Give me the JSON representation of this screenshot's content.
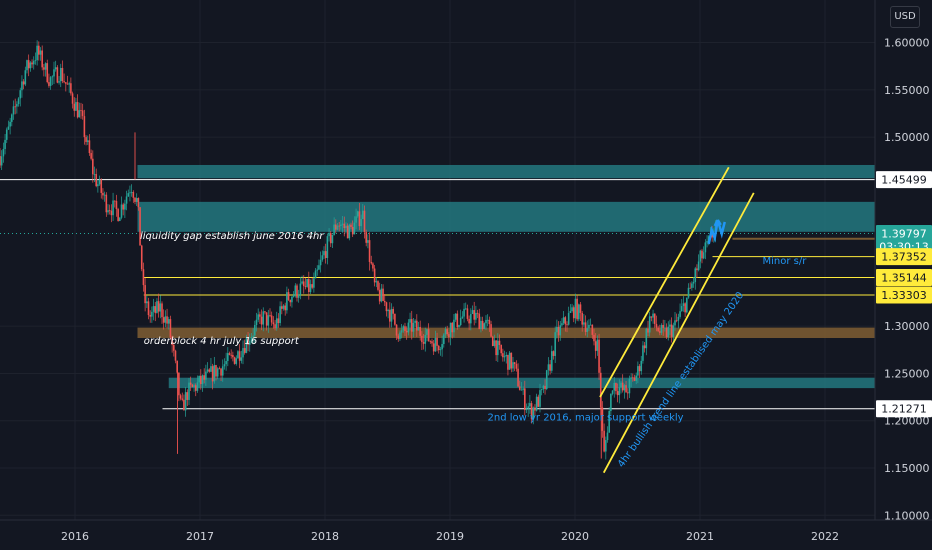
{
  "currency": "USD",
  "chart_data": {
    "type": "candlestick",
    "x_range": [
      2015.4,
      2022.4
    ],
    "y_range": [
      1.095,
      1.645
    ],
    "y_ticks": [
      {
        "value": 1.6,
        "label": "1.60000"
      },
      {
        "value": 1.55,
        "label": "1.55000"
      },
      {
        "value": 1.5,
        "label": "1.50000"
      },
      {
        "value": 1.3,
        "label": "1.30000"
      },
      {
        "value": 1.25,
        "label": "1.25000"
      },
      {
        "value": 1.2,
        "label": "1.20000"
      },
      {
        "value": 1.15,
        "label": "1.15000"
      },
      {
        "value": 1.1,
        "label": "1.10000"
      }
    ],
    "x_ticks": [
      {
        "value": 2016,
        "label": "2016"
      },
      {
        "value": 2017,
        "label": "2017"
      },
      {
        "value": 2018,
        "label": "2018"
      },
      {
        "value": 2019,
        "label": "2019"
      },
      {
        "value": 2020,
        "label": "2020"
      },
      {
        "value": 2021,
        "label": "2021"
      },
      {
        "value": 2022,
        "label": "2022"
      }
    ],
    "price_path": [
      [
        2015.4,
        1.48
      ],
      [
        2015.5,
        1.52
      ],
      [
        2015.6,
        1.57
      ],
      [
        2015.7,
        1.59
      ],
      [
        2015.8,
        1.56
      ],
      [
        2015.88,
        1.57
      ],
      [
        2015.95,
        1.55
      ],
      [
        2016.05,
        1.52
      ],
      [
        2016.15,
        1.46
      ],
      [
        2016.25,
        1.43
      ],
      [
        2016.35,
        1.42
      ],
      [
        2016.45,
        1.45
      ],
      [
        2016.5,
        1.43
      ],
      [
        2016.55,
        1.33
      ],
      [
        2016.6,
        1.31
      ],
      [
        2016.68,
        1.32
      ],
      [
        2016.75,
        1.3
      ],
      [
        2016.8,
        1.26
      ],
      [
        2016.85,
        1.21
      ],
      [
        2016.9,
        1.23
      ],
      [
        2017.0,
        1.24
      ],
      [
        2017.1,
        1.25
      ],
      [
        2017.2,
        1.26
      ],
      [
        2017.3,
        1.27
      ],
      [
        2017.4,
        1.29
      ],
      [
        2017.5,
        1.31
      ],
      [
        2017.6,
        1.3
      ],
      [
        2017.7,
        1.33
      ],
      [
        2017.8,
        1.34
      ],
      [
        2017.9,
        1.34
      ],
      [
        2018.0,
        1.38
      ],
      [
        2018.1,
        1.41
      ],
      [
        2018.2,
        1.4
      ],
      [
        2018.3,
        1.42
      ],
      [
        2018.4,
        1.34
      ],
      [
        2018.5,
        1.32
      ],
      [
        2018.6,
        1.29
      ],
      [
        2018.7,
        1.3
      ],
      [
        2018.8,
        1.29
      ],
      [
        2018.9,
        1.28
      ],
      [
        2019.0,
        1.3
      ],
      [
        2019.1,
        1.31
      ],
      [
        2019.2,
        1.31
      ],
      [
        2019.3,
        1.3
      ],
      [
        2019.4,
        1.27
      ],
      [
        2019.5,
        1.26
      ],
      [
        2019.6,
        1.22
      ],
      [
        2019.65,
        1.21
      ],
      [
        2019.75,
        1.23
      ],
      [
        2019.85,
        1.29
      ],
      [
        2019.95,
        1.31
      ],
      [
        2020.0,
        1.32
      ],
      [
        2020.1,
        1.3
      ],
      [
        2020.18,
        1.28
      ],
      [
        2020.23,
        1.16
      ],
      [
        2020.3,
        1.24
      ],
      [
        2020.4,
        1.23
      ],
      [
        2020.5,
        1.25
      ],
      [
        2020.6,
        1.31
      ],
      [
        2020.7,
        1.29
      ],
      [
        2020.8,
        1.3
      ],
      [
        2020.9,
        1.33
      ],
      [
        2021.0,
        1.37
      ],
      [
        2021.08,
        1.39
      ],
      [
        2021.13,
        1.41
      ]
    ],
    "horizontal_levels": [
      {
        "name": "level-1-45499",
        "value": 1.45499,
        "label": "1.45499",
        "color": "#ffffff",
        "tag_bg": "#ffffff",
        "tag_fg": "#131722",
        "x_start": 2015.4
      },
      {
        "name": "level-1-39797",
        "value": 1.39797,
        "label": "1.39797",
        "sub_label": "03:30:13",
        "color": "#26a69a",
        "tag_bg": "#26a69a",
        "tag_fg": "#ffffff",
        "dotted": true,
        "x_start": 2015.4
      },
      {
        "name": "level-1-37352",
        "value": 1.37352,
        "label": "1.37352",
        "color": "#ffeb3b",
        "tag_bg": "#ffeb3b",
        "tag_fg": "#131722",
        "x_start": 2021.1
      },
      {
        "name": "level-1-35144",
        "value": 1.35144,
        "label": "1.35144",
        "color": "#ffeb3b",
        "tag_bg": "#ffeb3b",
        "tag_fg": "#131722",
        "x_start": 2016.55
      },
      {
        "name": "level-1-33303",
        "value": 1.33303,
        "label": "1.33303",
        "color": "#ffeb3b",
        "tag_bg": "#ffeb3b",
        "tag_fg": "#131722",
        "x_start": 2016.55
      },
      {
        "name": "level-1-21271",
        "value": 1.21271,
        "label": "1.21271",
        "color": "#ffffff",
        "tag_bg": "#ffffff",
        "tag_fg": "#131722",
        "x_start": 2016.7
      }
    ],
    "zones": [
      {
        "name": "upper-liquidity-zone",
        "y_top": 1.4705,
        "y_bottom": 1.4565,
        "x_start": 2016.5,
        "color": "#22727a"
      },
      {
        "name": "liquidity-gap-zone",
        "y_top": 1.4315,
        "y_bottom": 1.3998,
        "x_start": 2016.5,
        "color": "#22727a"
      },
      {
        "name": "orderblock-zone",
        "y_top": 1.2985,
        "y_bottom": 1.2875,
        "x_start": 2016.5,
        "color": "#7a5a32"
      },
      {
        "name": "support-zone",
        "y_top": 1.2455,
        "y_bottom": 1.2345,
        "x_start": 2016.75,
        "color": "#22727a"
      }
    ],
    "channel_lines": [
      {
        "name": "channel-upper-line",
        "from": [
          2020.2,
          1.225
        ],
        "to": [
          2021.23,
          1.468
        ]
      },
      {
        "name": "channel-lower-line",
        "from": [
          2020.23,
          1.145
        ],
        "to": [
          2021.43,
          1.441
        ]
      }
    ],
    "annotations": [
      {
        "name": "liquidity-gap-note",
        "text": "liquidity gap establish june 2016 4hr",
        "x": 2016.52,
        "y": 1.392,
        "style": "white"
      },
      {
        "name": "orderblock-note",
        "text": "orderblock  4 hr july 16 support",
        "x": 2016.55,
        "y": 1.281,
        "style": "white"
      },
      {
        "name": "minor-sr-note",
        "text": "Minor s/r",
        "x": 2021.5,
        "y": 1.366,
        "style": "blue"
      },
      {
        "name": "support-weekly-note",
        "text": "2nd low yr 2016, major support weekly",
        "x": 2019.3,
        "y": 1.2,
        "style": "blue"
      },
      {
        "name": "trendline-note",
        "text": "4hr bullish trend line establised may 2020",
        "x": 2020.38,
        "y": 1.15,
        "style": "blue",
        "rotate": -55
      }
    ]
  }
}
